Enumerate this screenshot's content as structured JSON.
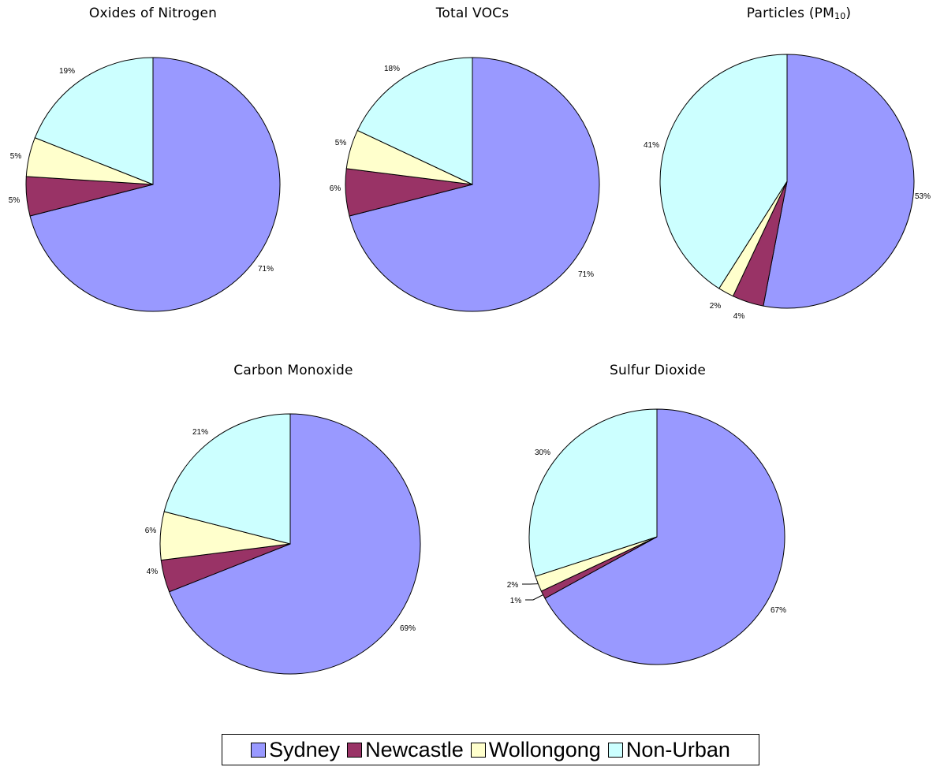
{
  "chart_data": [
    {
      "type": "pie",
      "title": "Oxides of Nitrogen",
      "series": [
        {
          "name": "Sydney",
          "value": 71,
          "label": "71%"
        },
        {
          "name": "Newcastle",
          "value": 5,
          "label": "5%"
        },
        {
          "name": "Wollongong",
          "value": 5,
          "label": "5%"
        },
        {
          "name": "Non-Urban",
          "value": 19,
          "label": "19%"
        }
      ]
    },
    {
      "type": "pie",
      "title": "Total VOCs",
      "series": [
        {
          "name": "Sydney",
          "value": 71,
          "label": "71%"
        },
        {
          "name": "Newcastle",
          "value": 6,
          "label": "6%"
        },
        {
          "name": "Wollongong",
          "value": 5,
          "label": "5%"
        },
        {
          "name": "Non-Urban",
          "value": 18,
          "label": "18%"
        }
      ]
    },
    {
      "type": "pie",
      "title": "Particles (PM",
      "title_subscript": "10",
      "title_suffix": ")",
      "series": [
        {
          "name": "Sydney",
          "value": 53,
          "label": "53%"
        },
        {
          "name": "Newcastle",
          "value": 4,
          "label": "4%"
        },
        {
          "name": "Wollongong",
          "value": 2,
          "label": "2%"
        },
        {
          "name": "Non-Urban",
          "value": 41,
          "label": "41%"
        }
      ]
    },
    {
      "type": "pie",
      "title": "Carbon Monoxide",
      "series": [
        {
          "name": "Sydney",
          "value": 69,
          "label": "69%"
        },
        {
          "name": "Newcastle",
          "value": 4,
          "label": "4%"
        },
        {
          "name": "Wollongong",
          "value": 6,
          "label": "6%"
        },
        {
          "name": "Non-Urban",
          "value": 21,
          "label": "21%"
        }
      ]
    },
    {
      "type": "pie",
      "title": "Sulfur Dioxide",
      "series": [
        {
          "name": "Sydney",
          "value": 67,
          "label": "67%"
        },
        {
          "name": "Newcastle",
          "value": 1,
          "label": "1%"
        },
        {
          "name": "Wollongong",
          "value": 2,
          "label": "2%"
        },
        {
          "name": "Non-Urban",
          "value": 30,
          "label": "30%"
        }
      ]
    }
  ],
  "legend": {
    "items": [
      {
        "name": "Sydney",
        "color": "#9999ff"
      },
      {
        "name": "Newcastle",
        "color": "#993366"
      },
      {
        "name": "Wollongong",
        "color": "#ffffcc"
      },
      {
        "name": "Non-Urban",
        "color": "#ccffff"
      }
    ]
  },
  "colors": {
    "Sydney": "#9999ff",
    "Newcastle": "#993366",
    "Wollongong": "#ffffcc",
    "Non-Urban": "#ccffff"
  }
}
